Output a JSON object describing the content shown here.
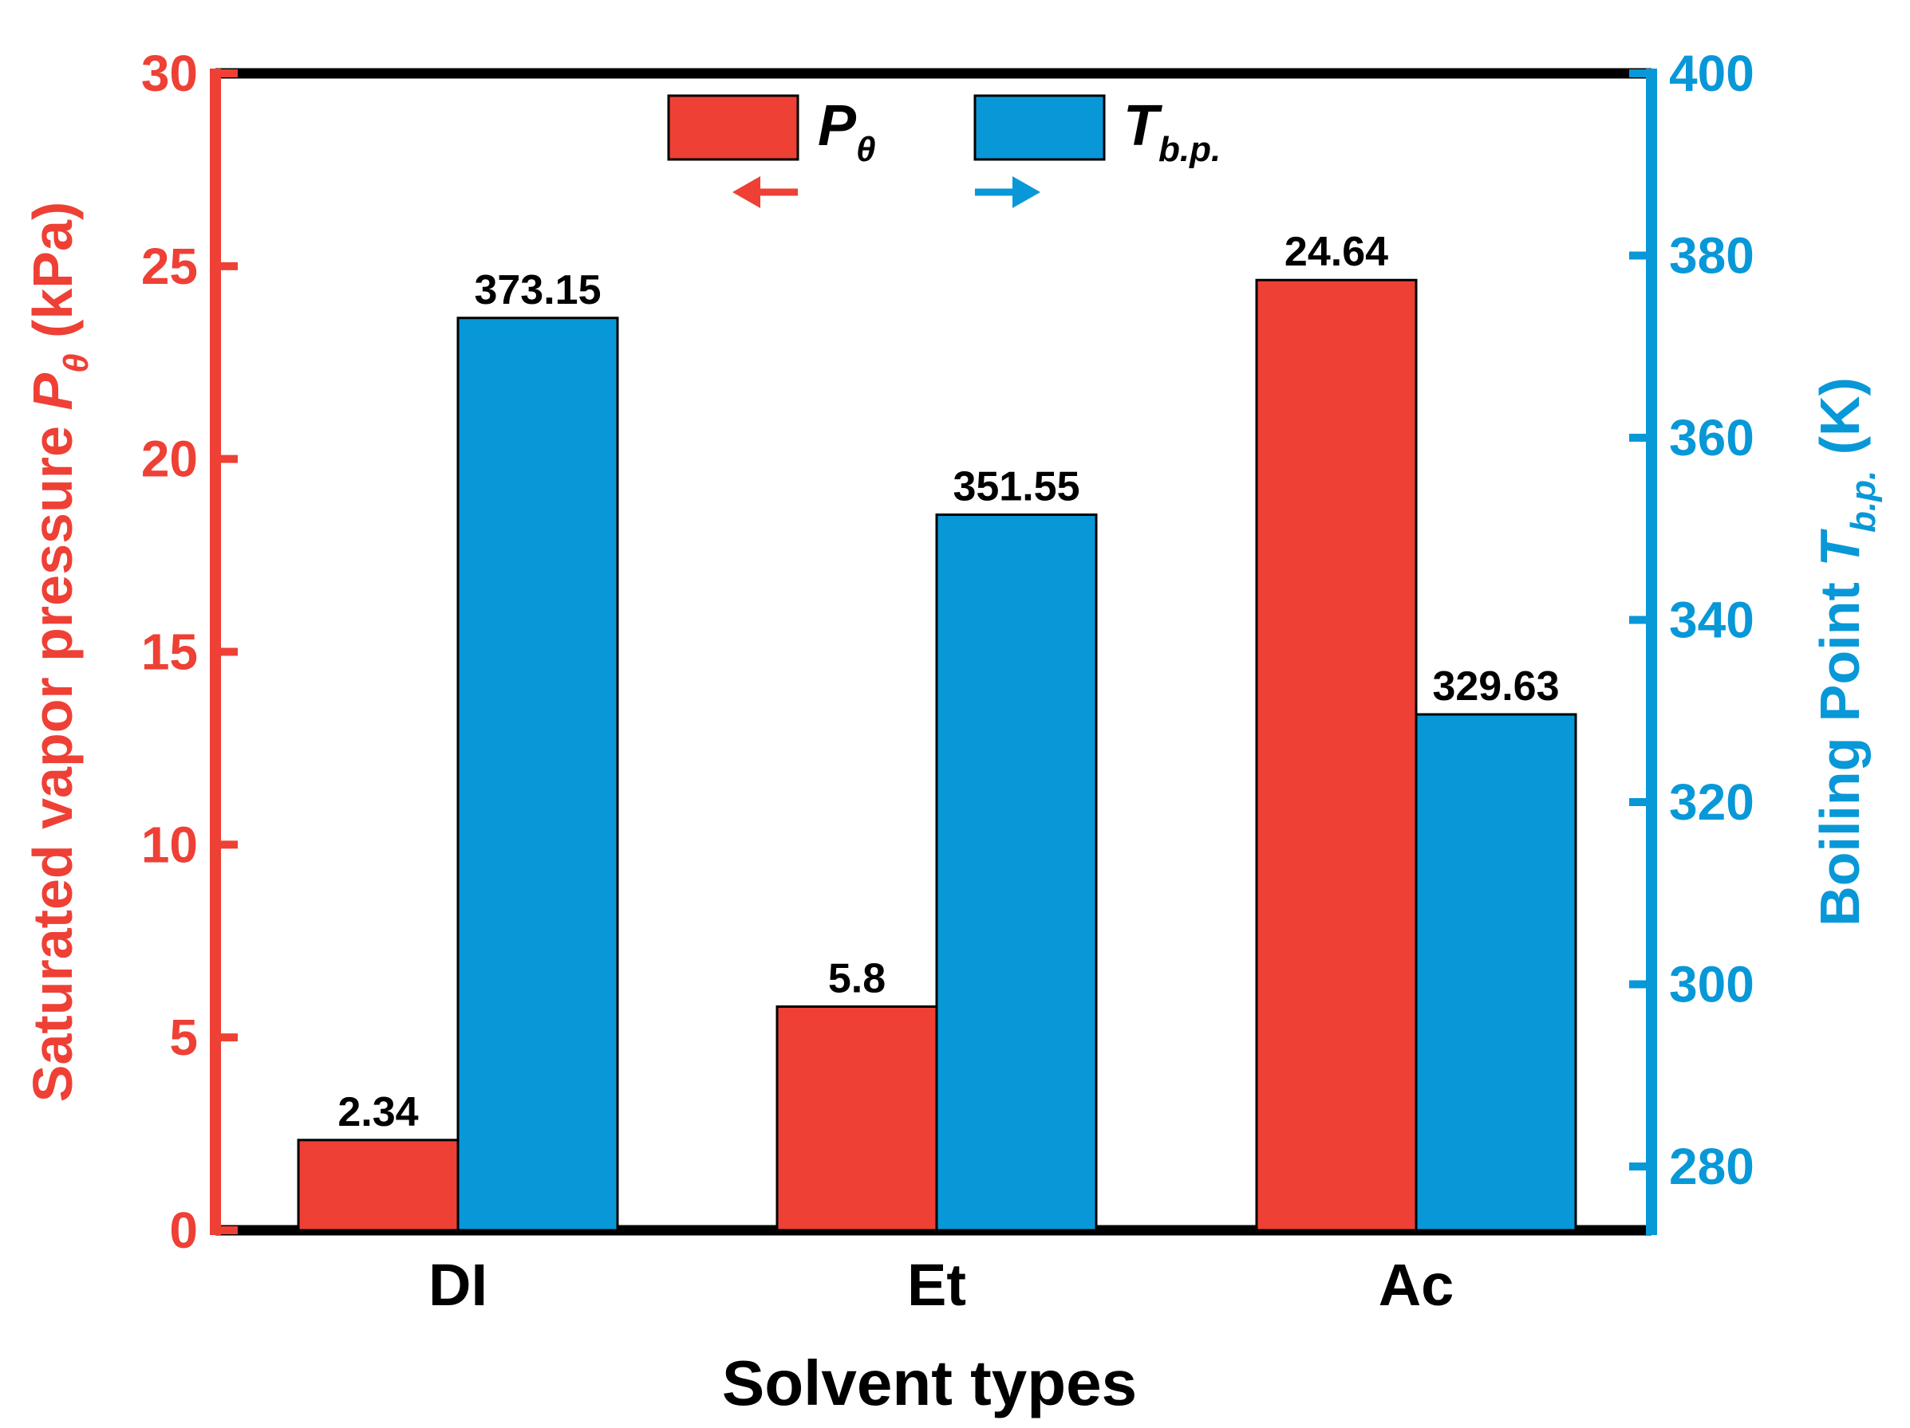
{
  "chart_data": {
    "type": "bar",
    "title": "",
    "xlabel": "Solvent types",
    "categories": [
      "DI",
      "Et",
      "Ac"
    ],
    "series": [
      {
        "name": "P_θ",
        "legend_main": "P",
        "legend_sub": "θ",
        "axis": "left",
        "color": "#ee4035",
        "values": [
          2.34,
          5.8,
          24.64
        ],
        "labels": [
          "2.34",
          "5.8",
          "24.64"
        ]
      },
      {
        "name": "T_b.p.",
        "legend_main": "T",
        "legend_sub": "b.p.",
        "axis": "right",
        "color": "#0898d8",
        "values": [
          373.15,
          351.55,
          329.63
        ],
        "labels": [
          "373.15",
          "351.55",
          "329.63"
        ]
      }
    ],
    "left_axis": {
      "label_prefix": "Saturated vapor pressure ",
      "label_var": "P",
      "label_sub": "θ",
      "label_suffix": " (kPa)",
      "color": "#ee4035",
      "ylim": [
        0,
        30
      ],
      "ticks": [
        0,
        5,
        10,
        15,
        20,
        25,
        30
      ]
    },
    "right_axis": {
      "label_prefix": "Boiling Point ",
      "label_var": "T",
      "label_sub": "b.p.",
      "label_suffix": " (K)",
      "color": "#0898d8",
      "ylim": [
        273,
        400
      ],
      "ticks": [
        280,
        300,
        320,
        340,
        360,
        380,
        400
      ]
    },
    "legend": {
      "placement": "top-center",
      "arrows": [
        "left",
        "right"
      ]
    }
  }
}
